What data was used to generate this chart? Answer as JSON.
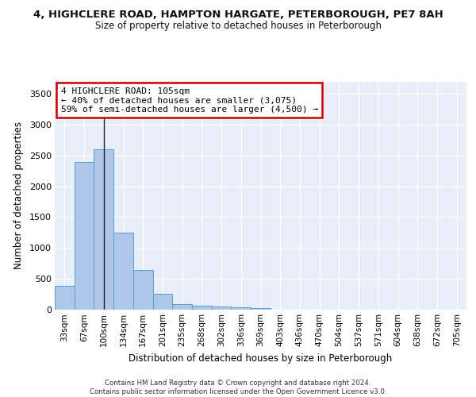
{
  "title_line1": "4, HIGHCLERE ROAD, HAMPTON HARGATE, PETERBOROUGH, PE7 8AH",
  "title_line2": "Size of property relative to detached houses in Peterborough",
  "xlabel": "Distribution of detached houses by size in Peterborough",
  "ylabel": "Number of detached properties",
  "categories": [
    "33sqm",
    "67sqm",
    "100sqm",
    "134sqm",
    "167sqm",
    "201sqm",
    "235sqm",
    "268sqm",
    "302sqm",
    "336sqm",
    "369sqm",
    "403sqm",
    "436sqm",
    "470sqm",
    "504sqm",
    "537sqm",
    "571sqm",
    "604sqm",
    "638sqm",
    "672sqm",
    "705sqm"
  ],
  "values": [
    390,
    2400,
    2600,
    1250,
    640,
    260,
    95,
    60,
    55,
    40,
    30,
    0,
    0,
    0,
    0,
    0,
    0,
    0,
    0,
    0,
    0
  ],
  "bar_color": "#aec6e8",
  "bar_edge_color": "#5a9fd4",
  "vline_x": 2,
  "vline_color": "#222222",
  "annotation_text": "4 HIGHCLERE ROAD: 105sqm\n← 40% of detached houses are smaller (3,075)\n59% of semi-detached houses are larger (4,500) →",
  "annotation_box_color": "#ffffff",
  "annotation_box_edge_color": "#cc0000",
  "ylim": [
    0,
    3700
  ],
  "background_color": "#e8eef8",
  "grid_color": "#ffffff",
  "footer_text": "Contains HM Land Registry data © Crown copyright and database right 2024.\nContains public sector information licensed under the Open Government Licence v3.0."
}
